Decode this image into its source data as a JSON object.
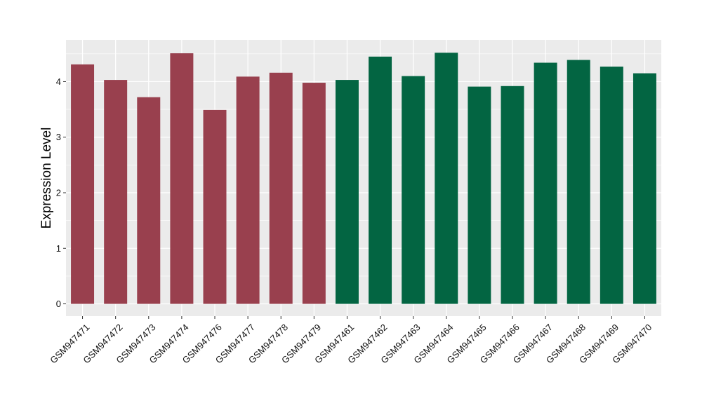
{
  "chart_data": {
    "type": "bar",
    "title": "",
    "xlabel": "",
    "ylabel": "Expression Level",
    "ylim": [
      -0.22,
      4.75
    ],
    "yticks": [
      0,
      1,
      2,
      3,
      4
    ],
    "yticks_labels": [
      "0",
      "1",
      "2",
      "3",
      "4"
    ],
    "grid": true,
    "legend": "none",
    "colors": {
      "panel_background": "#ebebeb",
      "grid": "#ffffff",
      "axis_text": "#111111",
      "group_a": "#99404e",
      "group_b": "#036542"
    },
    "categories": [
      "GSM947471",
      "GSM947472",
      "GSM947473",
      "GSM947474",
      "GSM947476",
      "GSM947477",
      "GSM947478",
      "GSM947479",
      "GSM947461",
      "GSM947462",
      "GSM947463",
      "GSM947464",
      "GSM947465",
      "GSM947466",
      "GSM947467",
      "GSM947468",
      "GSM947469",
      "GSM947470"
    ],
    "values": [
      4.31,
      4.03,
      3.72,
      4.51,
      3.49,
      4.09,
      4.16,
      3.98,
      4.03,
      4.45,
      4.1,
      4.52,
      3.91,
      3.92,
      4.34,
      4.39,
      4.27,
      4.15
    ],
    "bar_colors": [
      "#99404e",
      "#99404e",
      "#99404e",
      "#99404e",
      "#99404e",
      "#99404e",
      "#99404e",
      "#99404e",
      "#036542",
      "#036542",
      "#036542",
      "#036542",
      "#036542",
      "#036542",
      "#036542",
      "#036542",
      "#036542",
      "#036542"
    ]
  }
}
